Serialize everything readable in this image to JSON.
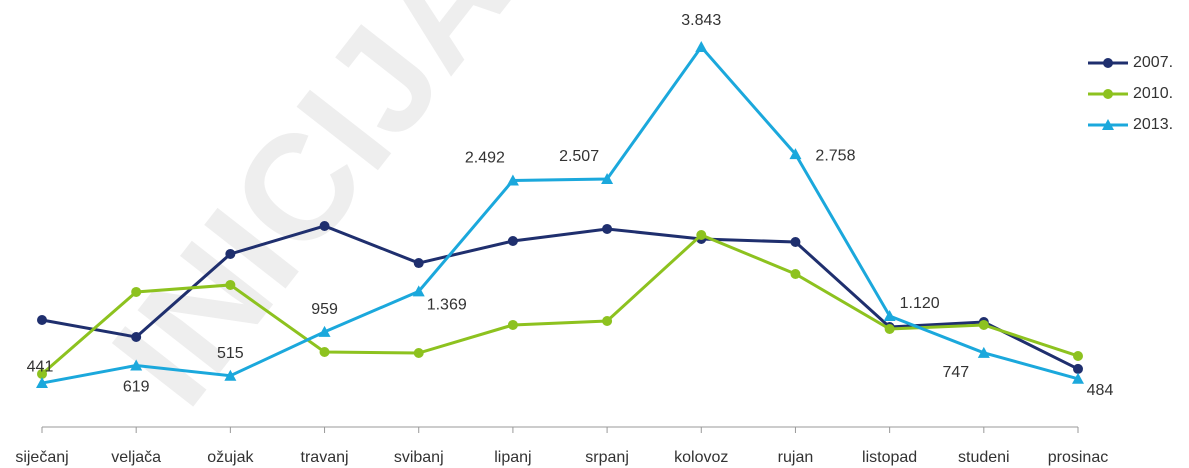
{
  "chart_data": {
    "type": "line",
    "watermark": "INICIJA",
    "categories": [
      "siječanj",
      "veljača",
      "ožujak",
      "travanj",
      "svibanj",
      "lipanj",
      "srpanj",
      "kolovoz",
      "rujan",
      "listopad",
      "studeni",
      "prosinac"
    ],
    "ylim": [
      0,
      4000
    ],
    "series": [
      {
        "name": "2007.",
        "color": "#1f2f6e",
        "marker": "circle",
        "values": [
          1079,
          907,
          1748,
          2031,
          1656,
          1879,
          2001,
          1899,
          1869,
          1008,
          1059,
          584
        ]
      },
      {
        "name": "2010.",
        "color": "#8dc21f",
        "marker": "circle",
        "values": [
          533,
          1363,
          1434,
          755,
          745,
          1029,
          1069,
          1940,
          1545,
          988,
          1029,
          715
        ]
      },
      {
        "name": "2013.",
        "color": "#1ba8dc",
        "marker": "triangle",
        "values": [
          441,
          619,
          515,
          959,
          1369,
          2492,
          2507,
          3843,
          2758,
          1120,
          747,
          484
        ],
        "value_labels": [
          "441",
          "619",
          "515",
          "959",
          "1.369",
          "2.492",
          "2.507",
          "3.843",
          "2.758",
          "1.120",
          "747",
          "484"
        ]
      }
    ],
    "legend": "top-right"
  }
}
